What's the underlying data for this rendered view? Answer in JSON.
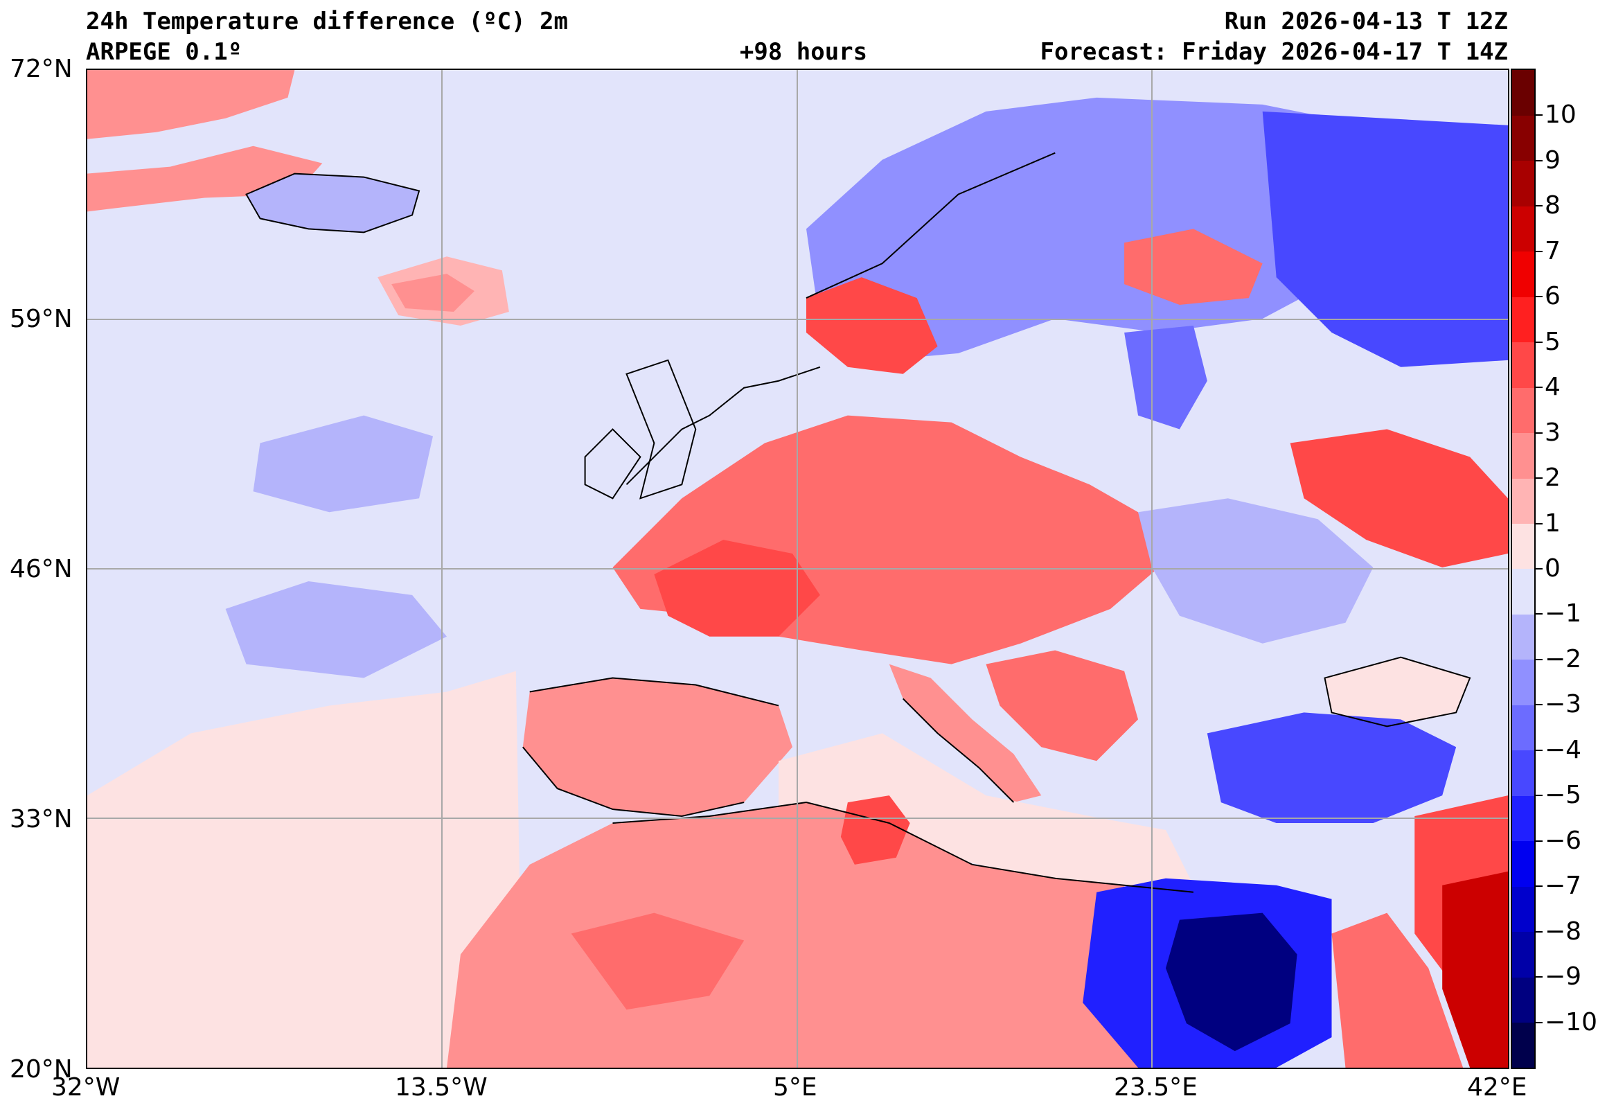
{
  "header": {
    "title": "24h Temperature difference (ºC) 2m",
    "model": "ARPEGE 0.1º",
    "lead_time": "+98 hours",
    "run": "Run 2026-04-13 T 12Z",
    "forecast": "Forecast: Friday 2026-04-17 T 14Z"
  },
  "map": {
    "lon_range": [
      -32,
      42
    ],
    "lat_range": [
      20,
      72
    ],
    "lon_labels": [
      "32°W",
      "13.5°W",
      "5°E",
      "23.5°E",
      "42°E"
    ],
    "lat_labels": [
      "72°N",
      "59°N",
      "46°N",
      "33°N",
      "20°N"
    ],
    "gridlines": true,
    "ocean_color": "#e2e4fb"
  },
  "colorbar": {
    "min": -11,
    "max": 11,
    "tick_labels": [
      "10",
      "9",
      "8",
      "7",
      "6",
      "5",
      "4",
      "3",
      "2",
      "1",
      "0",
      "−1",
      "−2",
      "−3",
      "−4",
      "−5",
      "−6",
      "−7",
      "−8",
      "−9",
      "−10"
    ],
    "tick_values": [
      10,
      9,
      8,
      7,
      6,
      5,
      4,
      3,
      2,
      1,
      0,
      -1,
      -2,
      -3,
      -4,
      -5,
      -6,
      -7,
      -8,
      -9,
      -10
    ],
    "colors": {
      "-11": "#00004c",
      "-10": "#000080",
      "-9": "#0000a8",
      "-8": "#0000cc",
      "-7": "#0000f0",
      "-6": "#2020ff",
      "-5": "#4848ff",
      "-4": "#6c6cff",
      "-3": "#9090ff",
      "-2": "#b4b4fb",
      "-1": "#e2e4fb",
      "0": "#fde2e2",
      "1": "#ffb4b4",
      "2": "#ff9090",
      "3": "#ff6c6c",
      "4": "#ff4848",
      "5": "#ff2020",
      "6": "#f00000",
      "7": "#cc0000",
      "8": "#a80000",
      "9": "#880000",
      "10": "#6a0000"
    }
  }
}
